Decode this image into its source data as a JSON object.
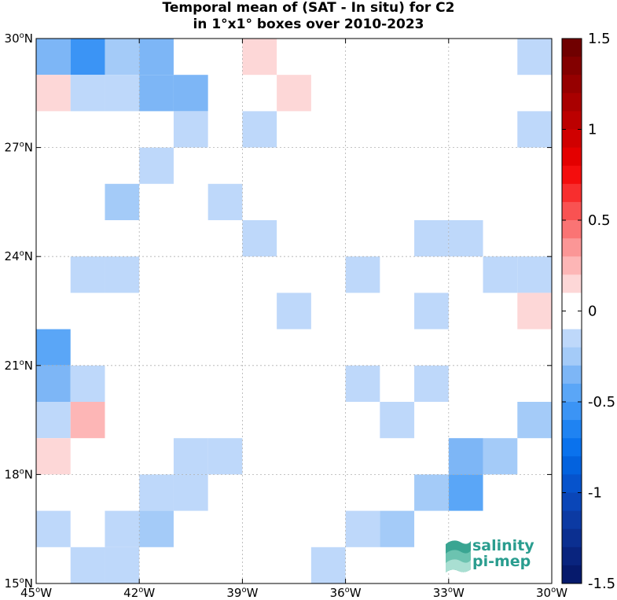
{
  "title": {
    "line1": "Temporal mean of (SAT - In situ) for C2",
    "line2": "in 1°x1° boxes over 2010-2023"
  },
  "logo": {
    "line1": "salinity",
    "line2": "pi-mep"
  },
  "chart_data": {
    "type": "heatmap",
    "title": "Temporal mean of (SAT - In situ) for C2 in 1°x1° boxes over 2010-2023",
    "xlim": [
      -45,
      -30
    ],
    "ylim": [
      15,
      30
    ],
    "x_ticks": [
      {
        "v": -45,
        "label": "45°W"
      },
      {
        "v": -42,
        "label": "42°W"
      },
      {
        "v": -39,
        "label": "39°W"
      },
      {
        "v": -36,
        "label": "36°W"
      },
      {
        "v": -33,
        "label": "33°W"
      },
      {
        "v": -30,
        "label": "30°W"
      }
    ],
    "y_ticks": [
      {
        "v": 15,
        "label": "15°N"
      },
      {
        "v": 18,
        "label": "18°N"
      },
      {
        "v": 21,
        "label": "21°N"
      },
      {
        "v": 24,
        "label": "24°N"
      },
      {
        "v": 27,
        "label": "27°N"
      },
      {
        "v": 30,
        "label": "30°N"
      }
    ],
    "grid": true,
    "colorbar": {
      "min": -1.5,
      "max": 1.5,
      "step": 0.1,
      "ticks": [
        {
          "v": 1.5,
          "label": "1.5"
        },
        {
          "v": 1,
          "label": "1"
        },
        {
          "v": 0.5,
          "label": "0.5"
        },
        {
          "v": 0,
          "label": "0"
        },
        {
          "v": -0.5,
          "label": "-0.5"
        },
        {
          "v": -1,
          "label": "-1"
        },
        {
          "v": -1.5,
          "label": "-1.5"
        }
      ]
    },
    "cells": [
      {
        "lon": -45,
        "lat": 29,
        "value": -0.35
      },
      {
        "lon": -44,
        "lat": 29,
        "value": -0.55
      },
      {
        "lon": -43,
        "lat": 29,
        "value": -0.3
      },
      {
        "lon": -42,
        "lat": 29,
        "value": -0.35
      },
      {
        "lon": -39,
        "lat": 29,
        "value": 0.15
      },
      {
        "lon": -31,
        "lat": 29,
        "value": -0.15
      },
      {
        "lon": -45,
        "lat": 28,
        "value": 0.15
      },
      {
        "lon": -44,
        "lat": 28,
        "value": -0.15
      },
      {
        "lon": -43,
        "lat": 28,
        "value": -0.15
      },
      {
        "lon": -42,
        "lat": 28,
        "value": -0.35
      },
      {
        "lon": -41,
        "lat": 28,
        "value": -0.35
      },
      {
        "lon": -38,
        "lat": 28,
        "value": 0.15
      },
      {
        "lon": -41,
        "lat": 27,
        "value": -0.15
      },
      {
        "lon": -39,
        "lat": 27,
        "value": -0.15
      },
      {
        "lon": -31,
        "lat": 27,
        "value": -0.15
      },
      {
        "lon": -42,
        "lat": 26,
        "value": -0.15
      },
      {
        "lon": -43,
        "lat": 25,
        "value": -0.25
      },
      {
        "lon": -40,
        "lat": 25,
        "value": -0.15
      },
      {
        "lon": -39,
        "lat": 24,
        "value": -0.15
      },
      {
        "lon": -34,
        "lat": 24,
        "value": -0.15
      },
      {
        "lon": -33,
        "lat": 24,
        "value": -0.15
      },
      {
        "lon": -44,
        "lat": 23,
        "value": -0.15
      },
      {
        "lon": -43,
        "lat": 23,
        "value": -0.15
      },
      {
        "lon": -36,
        "lat": 23,
        "value": -0.15
      },
      {
        "lon": -32,
        "lat": 23,
        "value": -0.15
      },
      {
        "lon": -31,
        "lat": 23,
        "value": -0.15
      },
      {
        "lon": -38,
        "lat": 22,
        "value": -0.15
      },
      {
        "lon": -34,
        "lat": 22,
        "value": -0.15
      },
      {
        "lon": -31,
        "lat": 22,
        "value": 0.15
      },
      {
        "lon": -45,
        "lat": 21,
        "value": -0.45
      },
      {
        "lon": -45,
        "lat": 20,
        "value": -0.35
      },
      {
        "lon": -44,
        "lat": 20,
        "value": -0.15
      },
      {
        "lon": -36,
        "lat": 20,
        "value": -0.15
      },
      {
        "lon": -34,
        "lat": 20,
        "value": -0.15
      },
      {
        "lon": -45,
        "lat": 19,
        "value": -0.15
      },
      {
        "lon": -44,
        "lat": 19,
        "value": 0.25
      },
      {
        "lon": -35,
        "lat": 19,
        "value": -0.15
      },
      {
        "lon": -31,
        "lat": 19,
        "value": -0.25
      },
      {
        "lon": -45,
        "lat": 18,
        "value": 0.15
      },
      {
        "lon": -41,
        "lat": 18,
        "value": -0.15
      },
      {
        "lon": -40,
        "lat": 18,
        "value": -0.15
      },
      {
        "lon": -33,
        "lat": 18,
        "value": -0.35
      },
      {
        "lon": -32,
        "lat": 18,
        "value": -0.25
      },
      {
        "lon": -42,
        "lat": 17,
        "value": -0.15
      },
      {
        "lon": -41,
        "lat": 17,
        "value": -0.15
      },
      {
        "lon": -34,
        "lat": 17,
        "value": -0.25
      },
      {
        "lon": -33,
        "lat": 17,
        "value": -0.45
      },
      {
        "lon": -45,
        "lat": 16,
        "value": -0.15
      },
      {
        "lon": -43,
        "lat": 16,
        "value": -0.15
      },
      {
        "lon": -42,
        "lat": 16,
        "value": -0.25
      },
      {
        "lon": -36,
        "lat": 16,
        "value": -0.15
      },
      {
        "lon": -35,
        "lat": 16,
        "value": -0.25
      },
      {
        "lon": -44,
        "lat": 15,
        "value": -0.15
      },
      {
        "lon": -43,
        "lat": 15,
        "value": -0.15
      },
      {
        "lon": -37,
        "lat": 15,
        "value": -0.15
      }
    ]
  }
}
